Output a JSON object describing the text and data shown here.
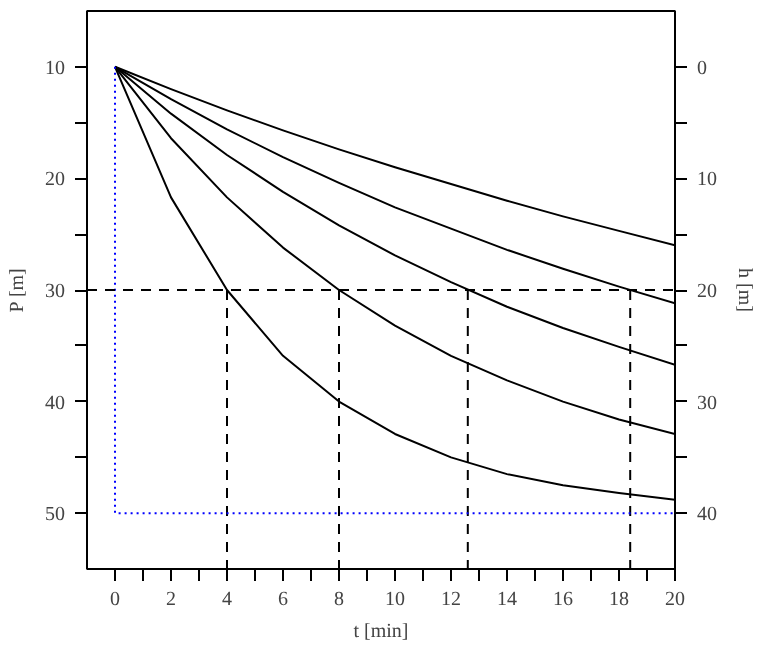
{
  "chart_data": {
    "type": "line",
    "xlabel": "t [min]",
    "ylabel": "P [m]",
    "y2label": "h [m]",
    "x": [
      0,
      2,
      4,
      6,
      8,
      10,
      12,
      14,
      16,
      18,
      20
    ],
    "xlim": [
      -1,
      20
    ],
    "xticks": [
      0,
      {
        "value": 1,
        "label": null
      },
      2,
      {
        "value": 3,
        "label": null
      },
      4,
      {
        "value": 5,
        "label": null
      },
      6,
      {
        "value": 7,
        "label": null
      },
      8,
      {
        "value": 9,
        "label": null
      },
      10,
      {
        "value": 11,
        "label": null
      },
      12,
      {
        "value": 13,
        "label": null
      },
      14,
      {
        "value": 15,
        "label": null
      },
      16,
      {
        "value": 17,
        "label": null
      },
      18,
      {
        "value": 19,
        "label": null
      },
      20
    ],
    "ylim": [
      55,
      5
    ],
    "yticks": [
      10,
      {
        "value": 15,
        "label": null
      },
      20,
      {
        "value": 25,
        "label": null
      },
      30,
      {
        "value": 35,
        "label": null
      },
      40,
      {
        "value": 45,
        "label": null
      },
      50
    ],
    "y2lim": [
      45,
      -5
    ],
    "y2ticks": [
      0,
      {
        "value": 5,
        "label": null
      },
      10,
      {
        "value": 15,
        "label": null
      },
      20,
      {
        "value": 25,
        "label": null
      },
      30,
      {
        "value": 35,
        "label": null
      },
      40
    ],
    "grid": false,
    "marker": "none",
    "line_style": "solid",
    "series": [
      {
        "color": "#000000",
        "values": [
          10,
          21.7,
          30,
          35.9,
          40,
          42.9,
          45,
          46.5,
          47.5,
          48.2,
          48.8
        ]
      },
      {
        "color": "#000000",
        "values": [
          10,
          16.4,
          21.7,
          26.2,
          30,
          33.2,
          35.9,
          38.1,
          40,
          41.6,
          42.9
        ]
      },
      {
        "color": "#000000",
        "values": [
          10,
          14.2,
          17.9,
          21.2,
          24.2,
          26.9,
          29.3,
          31.5,
          33.4,
          35.1,
          36.7
        ]
      },
      {
        "color": "#000000",
        "values": [
          10,
          12.9,
          15.6,
          18.1,
          20.4,
          22.6,
          24.5,
          26.4,
          28.1,
          29.7,
          31.2
        ]
      },
      {
        "color": "#000000",
        "values": [
          10,
          12.0,
          13.9,
          15.7,
          17.4,
          19.0,
          20.5,
          22.0,
          23.4,
          24.7,
          26.0
        ]
      },
      {
        "color": "#000000",
        "line_style": "dashed",
        "x": [
          4,
          4
        ],
        "values": [
          30,
          55
        ]
      },
      {
        "color": "#000000",
        "line_style": "dashed",
        "x": [
          8,
          8
        ],
        "values": [
          30,
          55
        ]
      },
      {
        "color": "#000000",
        "line_style": "dashed",
        "x": [
          12.6,
          12.6
        ],
        "values": [
          30,
          55
        ]
      },
      {
        "color": "#000000",
        "line_style": "dashed",
        "x": [
          18.4,
          18.4
        ],
        "values": [
          30,
          55
        ]
      },
      {
        "color": "#0000ff",
        "line_style": "dotted",
        "x": [
          0,
          0,
          20
        ],
        "values": [
          10,
          50,
          50
        ]
      }
    ],
    "ref_lines": [
      {
        "axis": "y",
        "value": 30,
        "color": "#000000",
        "line_style": "dashed"
      }
    ]
  }
}
